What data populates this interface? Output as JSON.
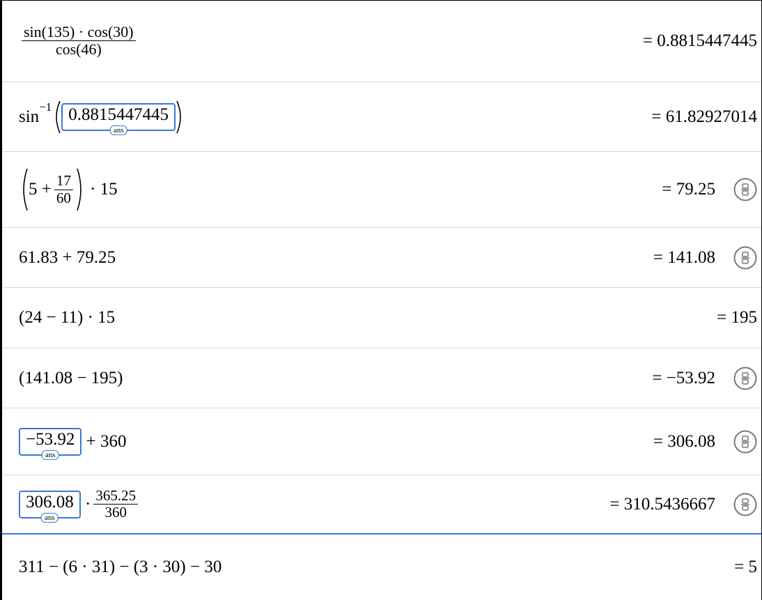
{
  "rows": [
    {
      "numerator": "sin(135) · cos(30)",
      "denominator": "cos(46)",
      "result": "= 0.8815447445"
    },
    {
      "function": "sin",
      "exponent": "−1",
      "ans_value": "0.8815447445",
      "ans_tag": "ans",
      "result": "= 61.82927014"
    },
    {
      "lead": "5 +",
      "numerator": "17",
      "denominator": "60",
      "tail": "· 15",
      "result": "= 79.25"
    },
    {
      "expression": "61.83 + 79.25",
      "result": "= 141.08"
    },
    {
      "expression": "(24 − 11) · 15",
      "result": "= 195"
    },
    {
      "expression": "(141.08 − 195)",
      "result": "= −53.92"
    },
    {
      "ans_value": "−53.92",
      "ans_tag": "ans",
      "tail": "+ 360",
      "result": "= 306.08"
    },
    {
      "ans_value": "306.08",
      "ans_tag": "ans",
      "tail": "·",
      "numerator": "365.25",
      "denominator": "360",
      "result": "= 310.5436667"
    },
    {
      "expression": "311 − (6 · 31) − (3 · 30) − 30",
      "result": "= 5"
    }
  ]
}
